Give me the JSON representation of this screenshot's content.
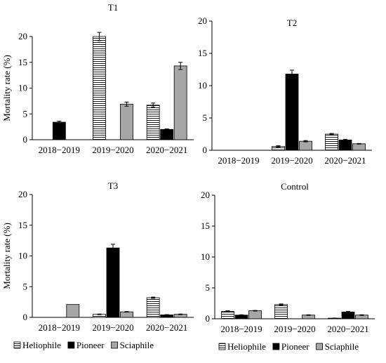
{
  "chart_data": [
    {
      "type": "bar",
      "title": "T1",
      "ylabel": "Mortality rate (%)",
      "xlabel": "",
      "categories": [
        "2018−2019",
        "2019−2020",
        "2020−2021"
      ],
      "ylim": [
        0,
        20
      ],
      "yticks": [
        "0",
        "5",
        "10",
        "15",
        "20"
      ],
      "series": [
        {
          "name": "Heliophile",
          "values": [
            0,
            20,
            6.7
          ],
          "errors": [
            0,
            0.8,
            0.4
          ]
        },
        {
          "name": "Pioneer",
          "values": [
            3.4,
            0,
            2.0
          ],
          "errors": [
            0.2,
            0,
            0.1
          ]
        },
        {
          "name": "Sciaphile",
          "values": [
            0,
            6.9,
            14.3
          ],
          "errors": [
            0,
            0.4,
            0.7
          ]
        }
      ]
    },
    {
      "type": "bar",
      "title": "T2",
      "ylabel": "",
      "xlabel": "",
      "categories": [
        "2018−2019",
        "2019−2020",
        "2020−2021"
      ],
      "ylim": [
        0,
        20
      ],
      "yticks": [
        "0",
        "5",
        "10",
        "15",
        "20"
      ],
      "series": [
        {
          "name": "Heliophile",
          "values": [
            0,
            0.6,
            2.5
          ],
          "errors": [
            0,
            0.1,
            0.1
          ]
        },
        {
          "name": "Pioneer",
          "values": [
            0,
            11.8,
            1.6
          ],
          "errors": [
            0,
            0.6,
            0.1
          ]
        },
        {
          "name": "Sciaphile",
          "values": [
            0,
            1.4,
            1.0
          ],
          "errors": [
            0,
            0.1,
            0.05
          ]
        }
      ]
    },
    {
      "type": "bar",
      "title": "T3",
      "ylabel": "Mortality rate (%)",
      "xlabel": "",
      "categories": [
        "2018−2019",
        "2019−2020",
        "2020−2021"
      ],
      "ylim": [
        0,
        20
      ],
      "yticks": [
        "0",
        "5",
        "10",
        "15",
        "20"
      ],
      "series": [
        {
          "name": "Heliophile",
          "values": [
            0,
            0.5,
            3.2
          ],
          "errors": [
            0,
            0.05,
            0.1
          ]
        },
        {
          "name": "Pioneer",
          "values": [
            0,
            11.3,
            0.4
          ],
          "errors": [
            0,
            0.6,
            0.05
          ]
        },
        {
          "name": "Sciaphile",
          "values": [
            2.1,
            0.9,
            0.5
          ],
          "errors": [
            0,
            0.05,
            0.05
          ]
        }
      ]
    },
    {
      "type": "bar",
      "title": "Control",
      "ylabel": "",
      "xlabel": "",
      "categories": [
        "2018−2019",
        "2019−2020",
        "2020−2021"
      ],
      "ylim": [
        0,
        20
      ],
      "yticks": [
        "0",
        "5",
        "10",
        "15",
        "20"
      ],
      "series": [
        {
          "name": "Heliophile",
          "values": [
            1.2,
            2.3,
            0.1
          ],
          "errors": [
            0.1,
            0.1,
            0.02
          ]
        },
        {
          "name": "Pioneer",
          "values": [
            0.6,
            0,
            1.1
          ],
          "errors": [
            0.05,
            0,
            0.1
          ]
        },
        {
          "name": "Sciaphile",
          "values": [
            1.3,
            0.6,
            0.6
          ],
          "errors": [
            0.05,
            0.05,
            0.05
          ]
        }
      ]
    }
  ],
  "legends": [
    {
      "items": [
        "Heliophile",
        "Pioneer",
        "Sciaphile"
      ]
    },
    {
      "items": [
        "Heliophile",
        "Pioneer",
        "Sciaphile"
      ]
    }
  ]
}
